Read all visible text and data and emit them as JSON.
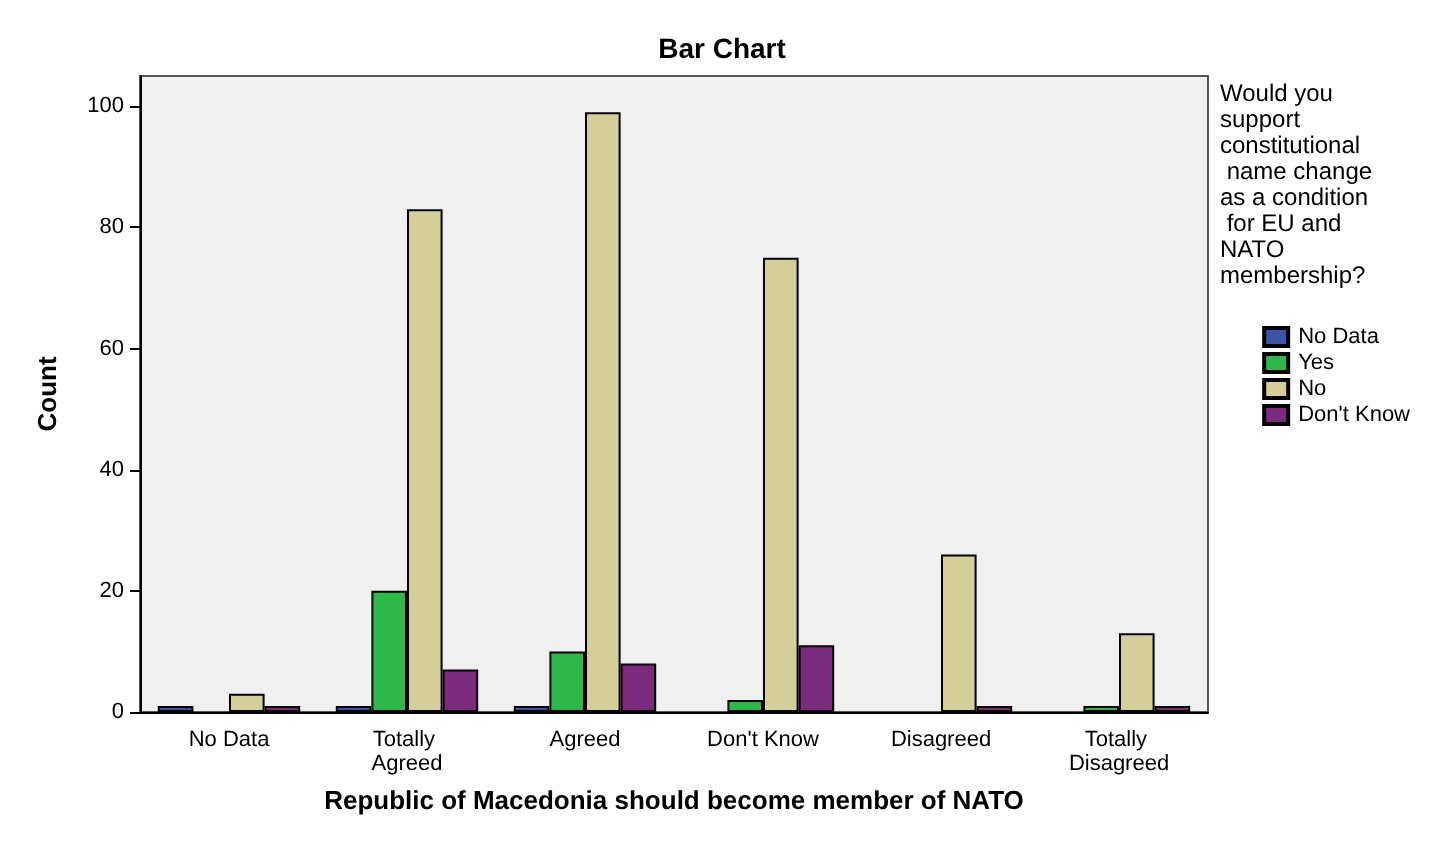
{
  "chart_data": {
    "type": "bar",
    "title": "Bar Chart",
    "xlabel": "Republic of Macedonia should become member of NATO",
    "ylabel": "Count",
    "legend_title": "Would you support constitutional name change as a condition for EU and NATO membership?",
    "categories": [
      "No Data",
      "Totally Agreed",
      "Agreed",
      "Don't Know",
      "Disagreed",
      "Totally Disagreed"
    ],
    "series": [
      {
        "name": "No Data",
        "color": "#3a55a4",
        "values": [
          1,
          1,
          1,
          null,
          null,
          null
        ]
      },
      {
        "name": "Yes",
        "color": "#2fb84a",
        "values": [
          null,
          20,
          10,
          2,
          null,
          1
        ]
      },
      {
        "name": "No",
        "color": "#d4cf98",
        "values": [
          3,
          83,
          99,
          75,
          26,
          13
        ]
      },
      {
        "name": "Don't Know",
        "color": "#7b2a7d",
        "values": [
          1,
          7,
          8,
          11,
          1,
          1
        ]
      }
    ],
    "ylim": [
      0,
      105
    ],
    "yticks": [
      0,
      20,
      40,
      60,
      80,
      100
    ],
    "grid": false,
    "legend": "right"
  }
}
